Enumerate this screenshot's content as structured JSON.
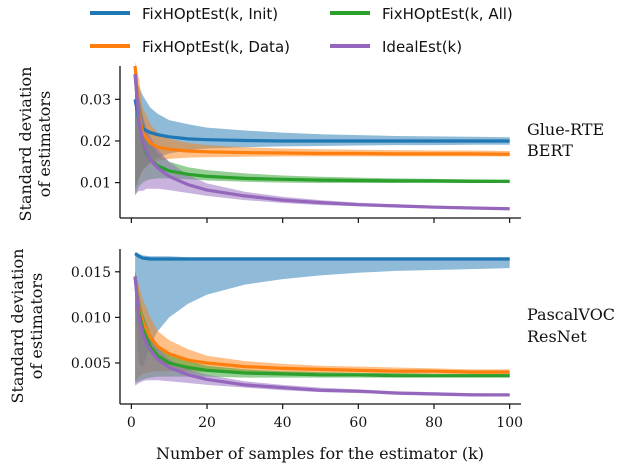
{
  "chart_data": {
    "type": "line",
    "xlabel": "Number of samples for the estimator (k)",
    "legend": {
      "placement": "top",
      "entries": [
        {
          "label": "FixHOptEst(k, Init)",
          "color": "#1f77b4"
        },
        {
          "label": "FixHOptEst(k, Data)",
          "color": "#ff7f0e"
        },
        {
          "label": "FixHOptEst(k, All)",
          "color": "#2ca02c"
        },
        {
          "label": "IdealEst(k)",
          "color": "#9467bd"
        }
      ]
    },
    "panels": [
      {
        "label_lines": [
          "Glue-RTE",
          "BERT"
        ],
        "ylabel_lines": [
          "Standard deviation",
          "of estimators"
        ],
        "xlim": [
          -3,
          103
        ],
        "ylim": [
          0.0015,
          0.038
        ],
        "xticks": [
          0,
          20,
          40,
          60,
          80,
          100
        ],
        "yticks": [
          0.01,
          0.02,
          0.03
        ],
        "ytick_labels": [
          "0.01",
          "0.02",
          "0.03"
        ],
        "series": [
          {
            "name": "FixHOptEst(k, Init)",
            "color": "#1f77b4",
            "x": [
              1,
              2,
              3,
              5,
              7,
              10,
              15,
              20,
              30,
              40,
              50,
              60,
              70,
              80,
              90,
              100
            ],
            "y": [
              0.03,
              0.025,
              0.023,
              0.022,
              0.0215,
              0.021,
              0.0205,
              0.0203,
              0.0201,
              0.02,
              0.02,
              0.02,
              0.02,
              0.02,
              0.02,
              0.02
            ],
            "lower": [
              0.008,
              0.011,
              0.013,
              0.015,
              0.016,
              0.017,
              0.0178,
              0.0182,
              0.0185,
              0.0187,
              0.0188,
              0.0189,
              0.019,
              0.019,
              0.0191,
              0.0191
            ],
            "upper": [
              0.035,
              0.033,
              0.031,
              0.028,
              0.0265,
              0.025,
              0.024,
              0.0232,
              0.0225,
              0.022,
              0.0216,
              0.0214,
              0.0212,
              0.0211,
              0.021,
              0.0209
            ]
          },
          {
            "name": "FixHOptEst(k, Data)",
            "color": "#ff7f0e",
            "x": [
              1,
              2,
              3,
              5,
              7,
              10,
              15,
              20,
              30,
              40,
              50,
              60,
              70,
              80,
              90,
              100
            ],
            "y": [
              0.038,
              0.026,
              0.022,
              0.0195,
              0.0185,
              0.018,
              0.0176,
              0.0174,
              0.0172,
              0.0171,
              0.017,
              0.017,
              0.0169,
              0.0169,
              0.0169,
              0.0168
            ],
            "lower": [
              0.009,
              0.011,
              0.013,
              0.0145,
              0.0152,
              0.0157,
              0.016,
              0.0161,
              0.0162,
              0.0163,
              0.0163,
              0.0163,
              0.0163,
              0.0163,
              0.0163,
              0.0163
            ],
            "upper": [
              0.039,
              0.035,
              0.028,
              0.024,
              0.022,
              0.0205,
              0.0195,
              0.019,
              0.0185,
              0.0182,
              0.018,
              0.0179,
              0.0178,
              0.0177,
              0.0177,
              0.0176
            ]
          },
          {
            "name": "FixHOptEst(k, All)",
            "color": "#2ca02c",
            "x": [
              1,
              2,
              3,
              4,
              5,
              7,
              10,
              15,
              20,
              30,
              40,
              50,
              60,
              70,
              80,
              90,
              100
            ],
            "y": [
              0.036,
              0.025,
              0.02,
              0.017,
              0.0155,
              0.014,
              0.0128,
              0.012,
              0.0115,
              0.011,
              0.0108,
              0.0106,
              0.0105,
              0.0104,
              0.0104,
              0.0103,
              0.0103
            ],
            "lower": [
              0.007,
              0.009,
              0.01,
              0.0105,
              0.0108,
              0.011,
              0.011,
              0.0108,
              0.0105,
              0.0102,
              0.01,
              0.0099,
              0.0099,
              0.0099,
              0.0099,
              0.0099,
              0.0099
            ],
            "upper": [
              0.037,
              0.031,
              0.026,
              0.022,
              0.0195,
              0.017,
              0.015,
              0.0137,
              0.013,
              0.0122,
              0.0117,
              0.0114,
              0.0112,
              0.011,
              0.0109,
              0.0108,
              0.0107
            ]
          },
          {
            "name": "IdealEst(k)",
            "color": "#9467bd",
            "x": [
              1,
              2,
              3,
              4,
              5,
              7,
              10,
              15,
              20,
              30,
              40,
              50,
              60,
              70,
              80,
              90,
              100
            ],
            "y": [
              0.036,
              0.025,
              0.02,
              0.0175,
              0.0155,
              0.0135,
              0.0115,
              0.0095,
              0.0082,
              0.0068,
              0.0058,
              0.0052,
              0.0047,
              0.0044,
              0.0041,
              0.0039,
              0.0037
            ],
            "lower": [
              0.007,
              0.008,
              0.008,
              0.0085,
              0.0085,
              0.0085,
              0.0082,
              0.0075,
              0.0068,
              0.0058,
              0.0051,
              0.0046,
              0.0043,
              0.004,
              0.0038,
              0.0036,
              0.0035
            ],
            "upper": [
              0.037,
              0.03,
              0.026,
              0.023,
              0.021,
              0.018,
              0.015,
              0.0118,
              0.0098,
              0.0078,
              0.0066,
              0.0058,
              0.0052,
              0.0048,
              0.0045,
              0.0042,
              0.004
            ]
          }
        ]
      },
      {
        "label_lines": [
          "PascalVOC",
          "ResNet"
        ],
        "ylabel_lines": [
          "Standard deviation",
          "of estimators"
        ],
        "xlim": [
          -3,
          103
        ],
        "ylim": [
          0.0005,
          0.0175
        ],
        "xticks": [
          0,
          20,
          40,
          60,
          80,
          100
        ],
        "yticks": [
          0.005,
          0.01,
          0.015
        ],
        "ytick_labels": [
          "0.005",
          "0.010",
          "0.015"
        ],
        "series": [
          {
            "name": "FixHOptEst(k, Init)",
            "color": "#1f77b4",
            "x": [
              1,
              2,
              3,
              5,
              7,
              10,
              15,
              20,
              30,
              40,
              50,
              60,
              70,
              80,
              90,
              100
            ],
            "y": [
              0.017,
              0.0167,
              0.0165,
              0.0164,
              0.0164,
              0.0164,
              0.0164,
              0.0164,
              0.0164,
              0.0164,
              0.0164,
              0.0164,
              0.0164,
              0.0164,
              0.0164,
              0.0164
            ],
            "lower": [
              0.011,
              0.005,
              0.0045,
              0.007,
              0.0085,
              0.01,
              0.0115,
              0.0125,
              0.0136,
              0.0142,
              0.0146,
              0.0149,
              0.0151,
              0.0152,
              0.0153,
              0.0154
            ],
            "upper": [
              0.0172,
              0.017,
              0.0168,
              0.0167,
              0.0167,
              0.0167,
              0.0166,
              0.0166,
              0.0166,
              0.0166,
              0.0166,
              0.0166,
              0.0166,
              0.0166,
              0.0166,
              0.0166
            ]
          },
          {
            "name": "FixHOptEst(k, Data)",
            "color": "#ff7f0e",
            "x": [
              1,
              2,
              3,
              5,
              7,
              10,
              15,
              20,
              30,
              40,
              50,
              60,
              70,
              80,
              90,
              100
            ],
            "y": [
              0.0145,
              0.011,
              0.0095,
              0.0078,
              0.0068,
              0.006,
              0.0053,
              0.005,
              0.0046,
              0.0044,
              0.0043,
              0.0042,
              0.0041,
              0.0041,
              0.004,
              0.004
            ],
            "lower": [
              0.003,
              0.0035,
              0.0038,
              0.004,
              0.0041,
              0.0041,
              0.0041,
              0.004,
              0.004,
              0.0039,
              0.0039,
              0.0039,
              0.0038,
              0.0038,
              0.0038,
              0.0038
            ],
            "upper": [
              0.015,
              0.0135,
              0.012,
              0.01,
              0.0085,
              0.0075,
              0.0065,
              0.0058,
              0.0052,
              0.0049,
              0.0047,
              0.0046,
              0.0045,
              0.0044,
              0.0043,
              0.0043
            ]
          },
          {
            "name": "FixHOptEst(k, All)",
            "color": "#2ca02c",
            "x": [
              1,
              2,
              3,
              5,
              7,
              10,
              15,
              20,
              30,
              40,
              50,
              60,
              70,
              80,
              90,
              100
            ],
            "y": [
              0.0145,
              0.0105,
              0.0088,
              0.0068,
              0.0058,
              0.005,
              0.0045,
              0.0042,
              0.0039,
              0.0038,
              0.0037,
              0.0037,
              0.0036,
              0.0036,
              0.0036,
              0.0036
            ],
            "lower": [
              0.0028,
              0.003,
              0.0032,
              0.0034,
              0.0035,
              0.0035,
              0.0035,
              0.0035,
              0.0034,
              0.0034,
              0.0034,
              0.0034,
              0.0034,
              0.0034,
              0.0034,
              0.0034
            ],
            "upper": [
              0.015,
              0.0125,
              0.0105,
              0.0082,
              0.007,
              0.006,
              0.0052,
              0.0047,
              0.0043,
              0.0041,
              0.004,
              0.0039,
              0.0039,
              0.0038,
              0.0038,
              0.0038
            ]
          },
          {
            "name": "IdealEst(k)",
            "color": "#9467bd",
            "x": [
              1,
              2,
              3,
              4,
              5,
              7,
              10,
              15,
              20,
              30,
              40,
              50,
              60,
              70,
              80,
              90,
              100
            ],
            "y": [
              0.0145,
              0.01,
              0.0082,
              0.0071,
              0.0064,
              0.0054,
              0.0045,
              0.0037,
              0.0032,
              0.0026,
              0.0023,
              0.002,
              0.0019,
              0.0017,
              0.0016,
              0.0015,
              0.0015
            ],
            "lower": [
              0.0025,
              0.0028,
              0.003,
              0.0031,
              0.0031,
              0.0031,
              0.003,
              0.0028,
              0.0026,
              0.0023,
              0.002,
              0.0018,
              0.0017,
              0.0016,
              0.0015,
              0.0014,
              0.0014
            ],
            "upper": [
              0.015,
              0.012,
              0.01,
              0.0088,
              0.0079,
              0.0066,
              0.0054,
              0.0043,
              0.0037,
              0.003,
              0.0026,
              0.0023,
              0.0021,
              0.0019,
              0.0018,
              0.0017,
              0.0016
            ]
          }
        ]
      }
    ]
  }
}
